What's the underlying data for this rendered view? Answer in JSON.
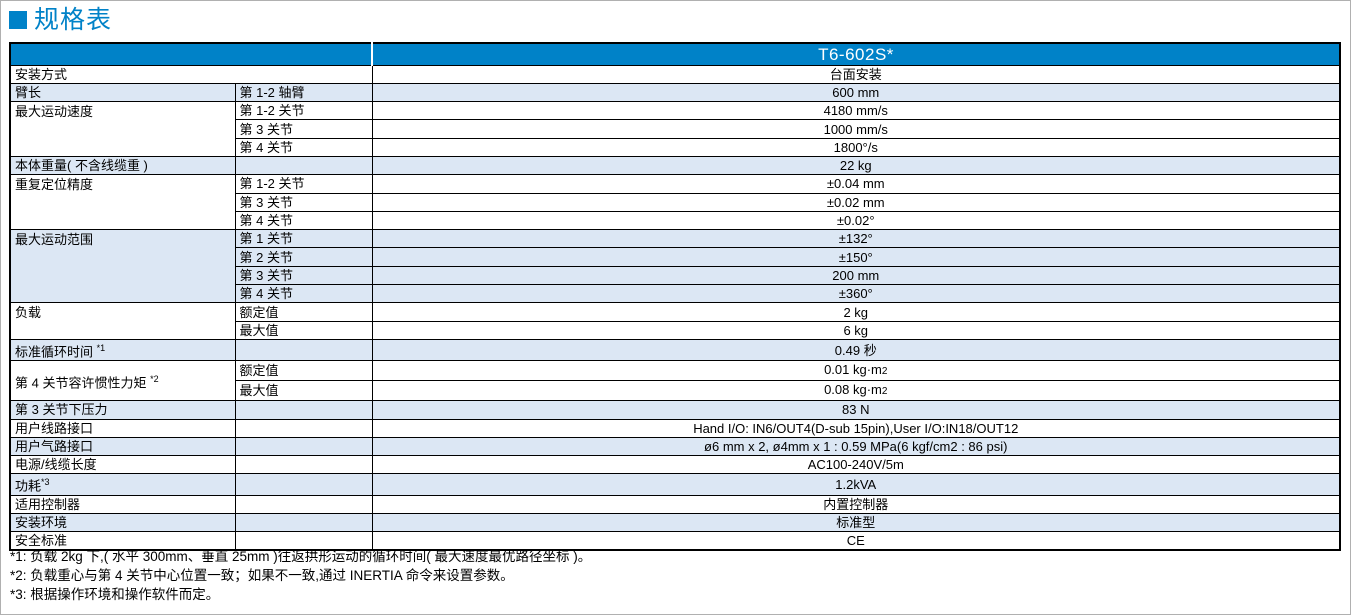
{
  "title": "规格表",
  "colors": {
    "accent_blue": "#0082c8",
    "row_shade": "#dce7f4",
    "header_text": "#ffffff"
  },
  "table": {
    "model_header": "T6-602S*",
    "rows": [
      {
        "label": "安装方式",
        "value": "台面安装"
      },
      {
        "label": "臂长",
        "sub": "第 1-2 轴臂",
        "value": "600 mm"
      },
      {
        "label": "最大运动速度",
        "sub": "第 1-2 关节",
        "value": "4180 mm/s"
      },
      {
        "sub": "第 3 关节",
        "value": "1000 mm/s"
      },
      {
        "sub": "第 4 关节",
        "value": "1800°/s"
      },
      {
        "label": "本体重量( 不含线缆重 )",
        "value": "22 kg"
      },
      {
        "label": "重复定位精度",
        "sub": "第 1-2 关节",
        "value": "±0.04 mm"
      },
      {
        "sub": "第 3 关节",
        "value": "±0.02 mm"
      },
      {
        "sub": "第 4 关节",
        "value": "±0.02°"
      },
      {
        "label": "最大运动范围",
        "sub": "第 1 关节",
        "value": "±132°"
      },
      {
        "sub": "第 2 关节",
        "value": "±150°"
      },
      {
        "sub": "第 3 关节",
        "value": "200 mm"
      },
      {
        "sub": "第 4 关节",
        "value": "±360°"
      },
      {
        "label": "负载",
        "sub": "额定值",
        "value": "2 kg"
      },
      {
        "sub": "最大值",
        "value": "6 kg"
      },
      {
        "label": "标准循环时间 ",
        "sup": "*1",
        "value": "0.49 秒"
      },
      {
        "label": "第 4 关节容许惯性力矩 ",
        "sup": "*2",
        "sub": "额定值",
        "value": "0.01 kg·m",
        "value_small": "2"
      },
      {
        "sub": "最大值",
        "value": "0.08 kg·m",
        "value_small": "2"
      },
      {
        "label": "第 3 关节下压力",
        "value": "83 N"
      },
      {
        "label": "用户线路接口",
        "value": "Hand I/O: IN6/OUT4(D-sub 15pin),User I/O:IN18/OUT12"
      },
      {
        "label": "用户气路接口",
        "value": "ø6 mm x 2, ø4mm x 1 : 0.59 MPa(6 kgf/cm2 : 86 psi)"
      },
      {
        "label": "电源/线缆长度",
        "value": "AC100-240V/5m"
      },
      {
        "label": "功耗",
        "sup": "*3",
        "value": "1.2kVA"
      },
      {
        "label": "适用控制器",
        "value": "内置控制器"
      },
      {
        "label": "安装环境",
        "value": "标准型"
      },
      {
        "label": "安全标准",
        "value": "CE"
      }
    ]
  },
  "footnotes": [
    "*1: 负载 2kg 下,( 水平 300mm、垂直 25mm )往返拱形运动的循环时间( 最大速度最优路径坐标 )。",
    "*2: 负载重心与第 4 关节中心位置一致；如果不一致,通过 INERTIA 命令来设置参数。",
    "*3: 根据操作环境和操作软件而定。"
  ]
}
